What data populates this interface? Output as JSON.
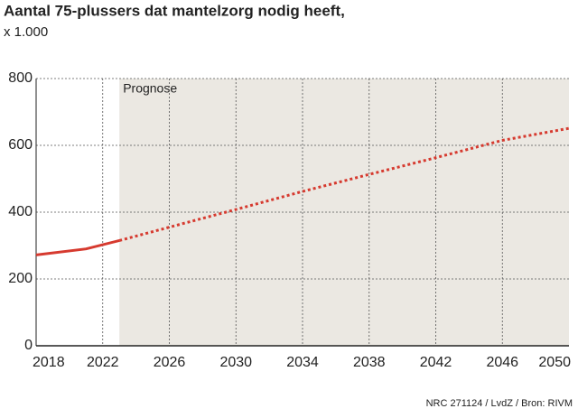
{
  "chart_data": {
    "type": "line",
    "title": "Aantal 75-plussers dat mantelzorg nodig heeft,",
    "subtitle": "x 1.000",
    "annotation": "Prognose",
    "prognose_start": 2023,
    "source": "NRC 271124 / LvdZ / Bron: RIVM",
    "x": [
      2018,
      2021,
      2023,
      2026,
      2030,
      2034,
      2038,
      2042,
      2046,
      2050
    ],
    "series": [
      {
        "color": "#d63a2f",
        "dashed": false,
        "values": [
          272,
          290,
          315,
          null,
          null,
          null,
          null,
          null,
          null,
          null
        ]
      },
      {
        "color": "#d63a2f",
        "dashed": true,
        "values": [
          null,
          null,
          315,
          355,
          408,
          462,
          513,
          563,
          615,
          651
        ]
      }
    ],
    "xlim": [
      2018,
      2050
    ],
    "xticks": [
      2018,
      2022,
      2026,
      2030,
      2034,
      2038,
      2042,
      2046,
      2050
    ],
    "ylim": [
      0,
      800
    ],
    "yticks": [
      0,
      200,
      400,
      600,
      800
    ],
    "grid": true
  }
}
